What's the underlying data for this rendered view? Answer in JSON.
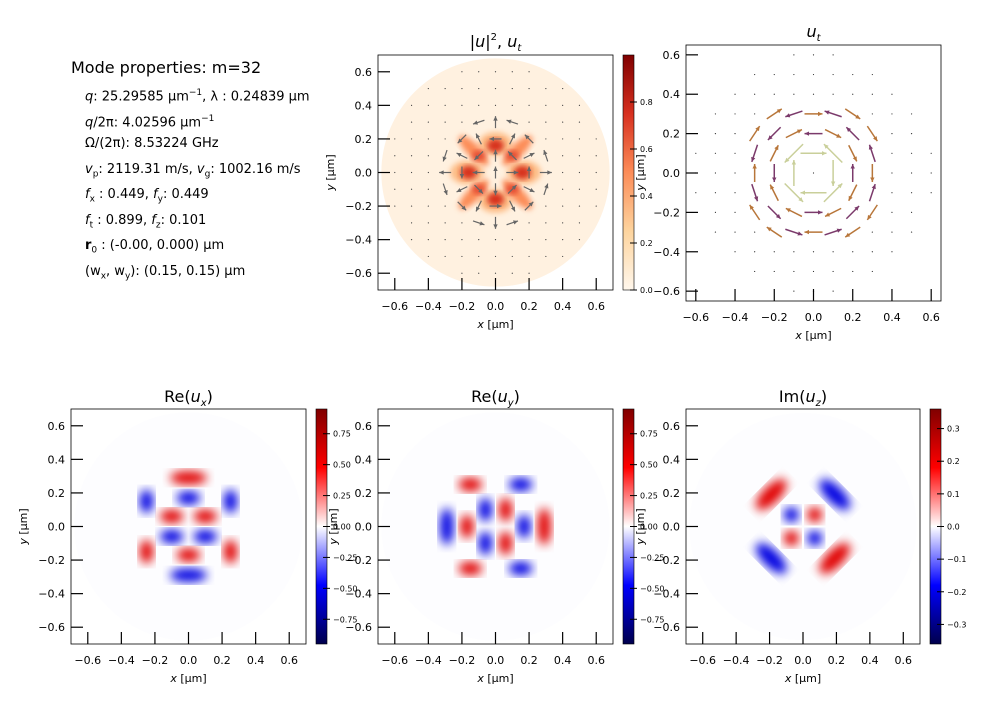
{
  "properties": {
    "title": "Mode properties: m=32",
    "q_sym": "q",
    "q_text": ": 25.29585 μm",
    "q_exp": "−1",
    "q_text2": ", λ :  0.24839 μm",
    "q2pi_sym": "q",
    "q2pi_text": "/2π: 4.02596 μm",
    "q2pi_exp": "−1",
    "omega_text": "Ω/(2π): 8.53224 GHz",
    "vp_sym": "v",
    "vp_sub": "p",
    "vp_text": ": 2119.31 m/s, ",
    "vg_sym": "v",
    "vg_sub": "g",
    "vg_text": ": 1002.16 m/s",
    "fx_sym": "f",
    "fx_sub": "x",
    "fx_text": " :  0.449, ",
    "fy_sym": "f",
    "fy_sub": "y",
    "fy_text": ": 0.449",
    "ft_sym": "f",
    "ft_sub": "t",
    "ft_text": " :  0.899, ",
    "fz_sym": "f",
    "fz_sub": "z",
    "fz_text": ": 0.101",
    "r0_sym": "r",
    "r0_sub": "0",
    "r0_text": " :  (-0.00, 0.000) μm",
    "w_text1": "(w",
    "w_sub1": "x",
    "w_text2": ", w",
    "w_sub2": "y",
    "w_text3": "): ",
    "w_text4": " (0.15, 0.15) μm"
  },
  "chart_data": [
    {
      "type": "heatmap",
      "title": "|u⃗|², u⃗ₜ",
      "title_parts": {
        "a": "|",
        "u": "u",
        "b": "|",
        "sup": "2",
        "c": ",  ",
        "ut": "u",
        "ut_sub": "t"
      },
      "xlabel_sym": "x",
      "xlabel_unit": " [μm]",
      "ylabel_sym": "y",
      "ylabel_unit": " [μm]",
      "xticks": [
        "−0.6",
        "−0.4",
        "−0.2",
        "0.0",
        "0.2",
        "0.4",
        "0.6"
      ],
      "yticks": [
        "−0.6",
        "−0.4",
        "−0.2",
        "0.0",
        "0.2",
        "0.4",
        "0.6"
      ],
      "xlim": [
        -0.7,
        0.7
      ],
      "ylim": [
        -0.7,
        0.7
      ],
      "colormap": "OrRd",
      "colorbar_ticks": [
        "0.0",
        "0.2",
        "0.4",
        "0.6",
        "0.8"
      ],
      "clim": [
        0,
        1
      ],
      "colorbar_label_sym": "y",
      "colorbar_label_unit": " [μm]",
      "overlay": "arrows"
    },
    {
      "type": "quiver",
      "title": "u⃗ₜ",
      "title_parts": {
        "u": "u",
        "sub": "t"
      },
      "xlabel_sym": "x",
      "xlabel_unit": " [μm]",
      "xticks": [
        "−0.6",
        "−0.4",
        "−0.2",
        "0.0",
        "0.2",
        "0.4",
        "0.6"
      ],
      "yticks": [
        "−0.6",
        "−0.4",
        "−0.2",
        "0.0",
        "0.2",
        "0.4",
        "0.6"
      ],
      "xlim": [
        -0.65,
        0.65
      ],
      "ylim": [
        -0.65,
        0.65
      ]
    },
    {
      "type": "heatmap",
      "title": "Re(uₓ)",
      "title_parts": {
        "a": "Re(",
        "u": "u",
        "sub": "x",
        "b": ")"
      },
      "xlabel_sym": "x",
      "xlabel_unit": " [μm]",
      "ylabel_sym": "y",
      "ylabel_unit": " [μm]",
      "xticks": [
        "−0.6",
        "−0.4",
        "−0.2",
        "0.0",
        "0.2",
        "0.4",
        "0.6"
      ],
      "yticks": [
        "−0.6",
        "−0.4",
        "−0.2",
        "0.0",
        "0.2",
        "0.4",
        "0.6"
      ],
      "xlim": [
        -0.7,
        0.7
      ],
      "ylim": [
        -0.7,
        0.7
      ],
      "colormap": "seismic",
      "colorbar_ticks": [
        "0.75",
        "0.50",
        "0.25",
        "0.00",
        "−0.25",
        "−0.50",
        "−0.75"
      ],
      "clim": [
        -0.95,
        0.95
      ],
      "colorbar_label_sym": "y",
      "colorbar_label_unit": " [μm]"
    },
    {
      "type": "heatmap",
      "title": "Re(u_y)",
      "title_parts": {
        "a": "Re(",
        "u": "u",
        "sub": "y",
        "b": ")"
      },
      "xlabel_sym": "x",
      "xlabel_unit": " [μm]",
      "xticks": [
        "−0.6",
        "−0.4",
        "−0.2",
        "0.0",
        "0.2",
        "0.4",
        "0.6"
      ],
      "yticks": [
        "−0.6",
        "−0.4",
        "−0.2",
        "0.0",
        "0.2",
        "0.4",
        "0.6"
      ],
      "xlim": [
        -0.7,
        0.7
      ],
      "ylim": [
        -0.7,
        0.7
      ],
      "colormap": "seismic",
      "colorbar_ticks": [
        "0.75",
        "0.50",
        "0.25",
        "0.00",
        "−0.25",
        "−0.50",
        "−0.75"
      ],
      "clim": [
        -0.95,
        0.95
      ],
      "colorbar_label_sym": "y",
      "colorbar_label_unit": " [μm]"
    },
    {
      "type": "heatmap",
      "title": "Im(u_z)",
      "title_parts": {
        "a": "Im(",
        "u": "u",
        "sub": "z",
        "b": ")"
      },
      "xlabel_sym": "x",
      "xlabel_unit": " [μm]",
      "xticks": [
        "−0.6",
        "−0.4",
        "−0.2",
        "0.0",
        "0.2",
        "0.4",
        "0.6"
      ],
      "yticks": [
        "−0.6",
        "−0.4",
        "−0.2",
        "0.0",
        "0.2",
        "0.4",
        "0.6"
      ],
      "xlim": [
        -0.7,
        0.7
      ],
      "ylim": [
        -0.7,
        0.7
      ],
      "colormap": "seismic",
      "colorbar_ticks": [
        "0.3",
        "0.2",
        "0.1",
        "0.0",
        "−0.1",
        "−0.2",
        "−0.3"
      ],
      "clim": [
        -0.36,
        0.36
      ]
    }
  ]
}
